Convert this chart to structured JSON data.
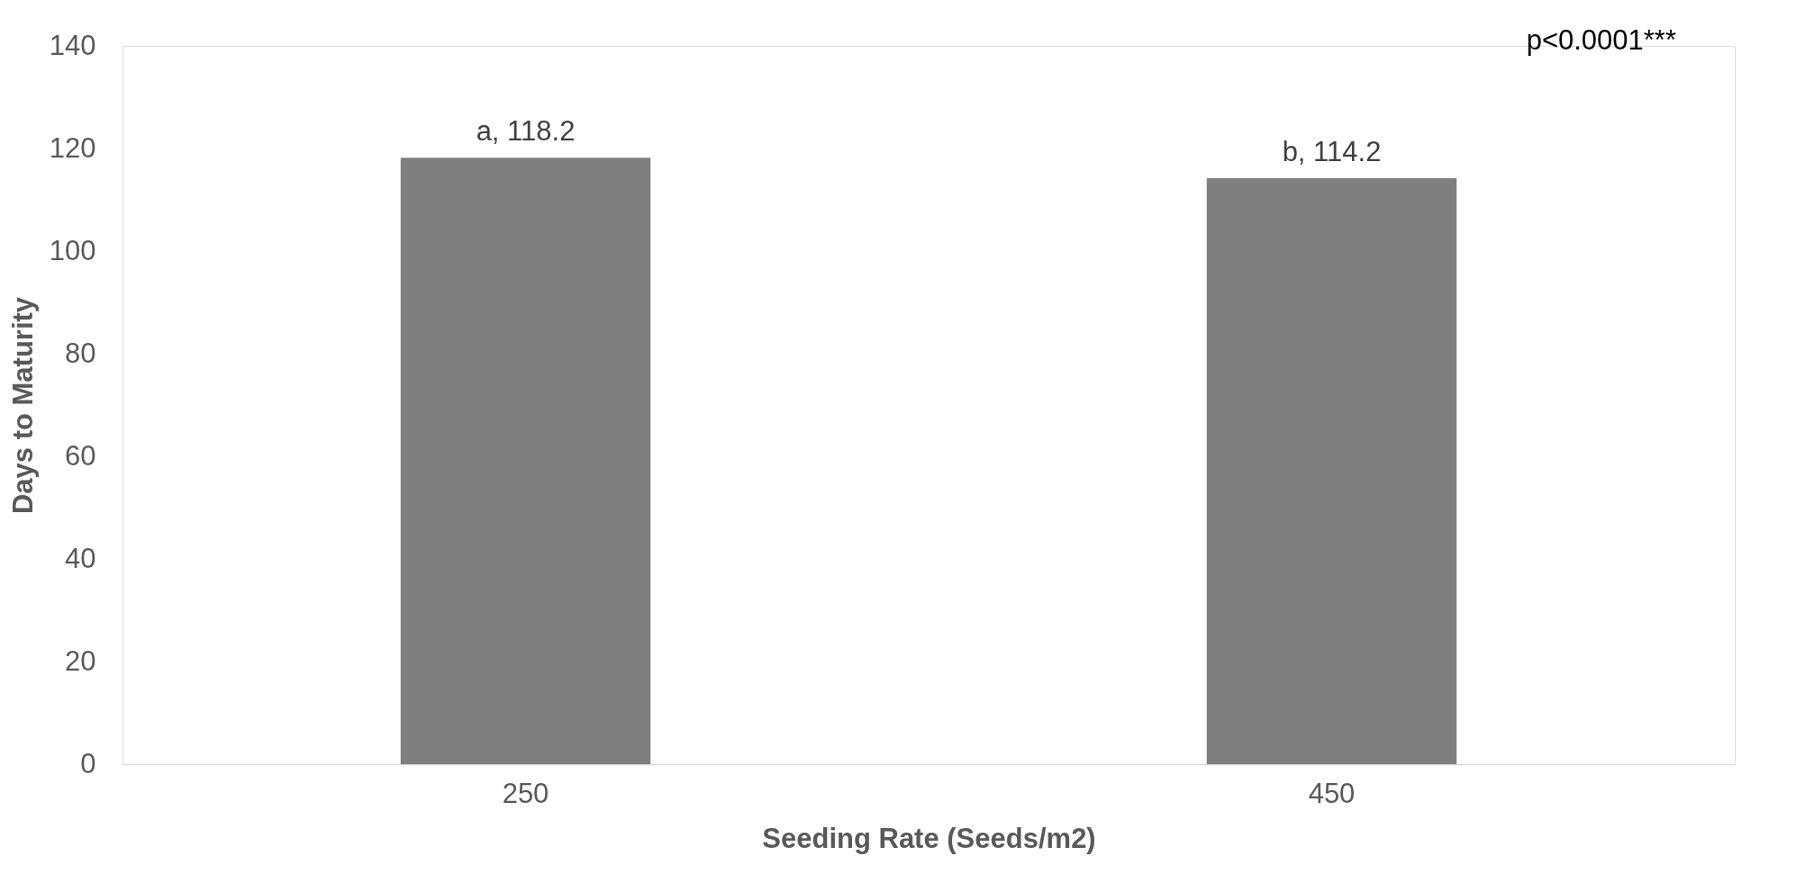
{
  "chart_data": {
    "type": "bar",
    "xlabel": "Seeding Rate (Seeds/m2)",
    "ylabel": "Days to Maturity",
    "categories": [
      "250",
      "450"
    ],
    "values": [
      118.2,
      114.2
    ],
    "value_labels": [
      "a, 118.2",
      "b, 114.2"
    ],
    "color": "#7f7f7f",
    "ylim": [
      0,
      140
    ],
    "yticks": [
      0,
      20,
      40,
      60,
      80,
      100,
      120,
      140
    ],
    "grid": false,
    "annotations": [
      "p<0.0001***"
    ]
  }
}
